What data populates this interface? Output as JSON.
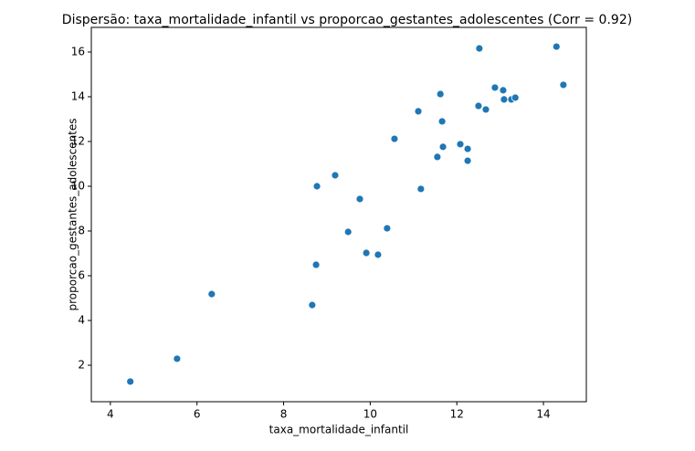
{
  "chart_data": {
    "type": "scatter",
    "title": "Dispersão: taxa_mortalidade_infantil vs proporcao_gestantes_adolescentes (Corr = 0.92)",
    "x_label": "taxa_mortalidade_infantil",
    "y_label": "proporcao_gestantes_adolescentes",
    "color": "#1f77b4",
    "x": [
      4.46,
      5.54,
      6.34,
      8.66,
      8.77,
      9.19,
      8.75,
      9.49,
      9.76,
      9.91,
      10.18,
      10.39,
      10.56,
      11.11,
      11.17,
      11.55,
      11.62,
      11.66,
      11.68,
      12.08,
      12.25,
      12.25,
      12.5,
      12.52,
      12.67,
      12.88,
      13.07,
      13.09,
      13.26,
      13.35,
      14.3,
      14.46
    ],
    "values": [
      1.27,
      2.29,
      5.18,
      4.69,
      10.0,
      10.49,
      6.49,
      7.96,
      9.43,
      7.02,
      6.94,
      8.12,
      12.12,
      13.35,
      9.88,
      11.31,
      14.12,
      12.9,
      11.76,
      11.88,
      11.67,
      11.14,
      13.59,
      16.16,
      13.43,
      14.41,
      14.29,
      13.88,
      13.88,
      13.96,
      16.24,
      14.53
    ],
    "xlim": [
      3.56,
      14.99
    ],
    "ylim": [
      0.37,
      17.1
    ],
    "xticks": [
      4,
      6,
      8,
      10,
      12,
      14
    ],
    "yticks": [
      2,
      4,
      6,
      8,
      10,
      12,
      14,
      16
    ]
  }
}
